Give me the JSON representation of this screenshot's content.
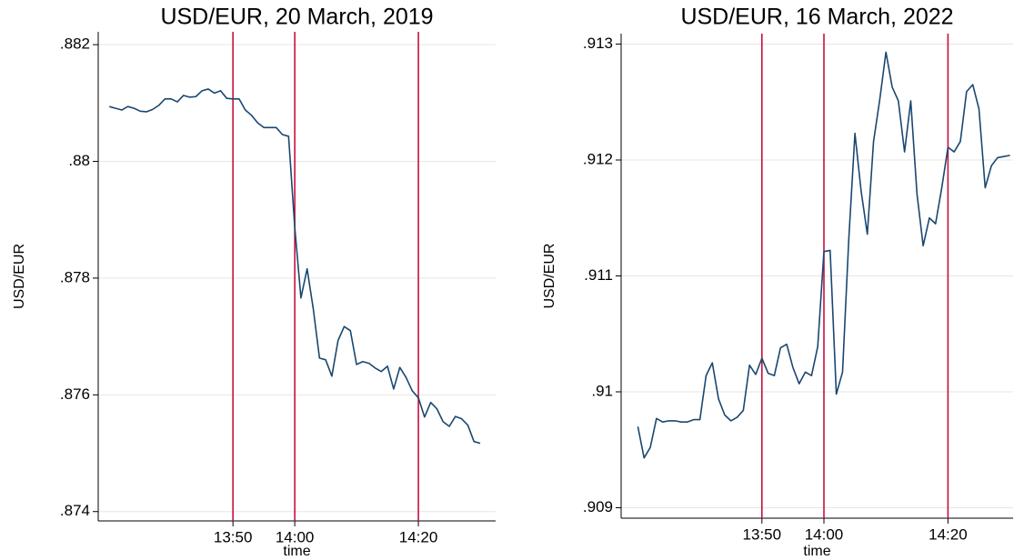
{
  "chart_data": [
    {
      "type": "line",
      "title": "USD/EUR, 20 March, 2019",
      "xlabel": "time",
      "ylabel": "USD/EUR",
      "color": "#1a476f",
      "x": [
        810,
        811,
        812,
        813,
        814,
        815,
        816,
        817,
        818,
        819,
        820,
        821,
        822,
        823,
        824,
        825,
        826,
        827,
        828,
        829,
        830,
        831,
        832,
        833,
        834,
        835,
        836,
        837,
        838,
        839,
        840,
        841,
        842,
        843,
        844,
        845,
        846,
        847,
        848,
        849,
        850,
        851,
        852,
        853,
        854,
        855,
        856,
        857,
        858,
        859,
        860,
        861,
        862,
        863,
        864,
        865,
        866,
        867,
        868,
        869,
        870
      ],
      "values": [
        0.88094,
        0.88091,
        0.88088,
        0.88094,
        0.88091,
        0.88086,
        0.88085,
        0.88089,
        0.88096,
        0.88107,
        0.88107,
        0.88102,
        0.88113,
        0.8811,
        0.88111,
        0.88121,
        0.88124,
        0.88117,
        0.88121,
        0.88108,
        0.88107,
        0.88107,
        0.88088,
        0.88079,
        0.88066,
        0.88058,
        0.88058,
        0.88058,
        0.88046,
        0.88043,
        0.87887,
        0.87766,
        0.87816,
        0.87747,
        0.87663,
        0.8766,
        0.87632,
        0.87693,
        0.87717,
        0.8771,
        0.87652,
        0.87657,
        0.87654,
        0.87646,
        0.8764,
        0.87649,
        0.8761,
        0.87647,
        0.8763,
        0.87607,
        0.87595,
        0.87562,
        0.87587,
        0.87576,
        0.87554,
        0.87546,
        0.87563,
        0.87559,
        0.87548,
        0.8752,
        0.87517
      ],
      "xlim": [
        808.2,
        872.5
      ],
      "xticks": [
        {
          "value": 830,
          "label": "13:50"
        },
        {
          "value": 840,
          "label": "14:00"
        },
        {
          "value": 860,
          "label": "14:20"
        }
      ],
      "ylim": [
        0.87384,
        0.88222
      ],
      "yticks": [
        {
          "value": 0.874,
          "label": ".874"
        },
        {
          "value": 0.876,
          "label": ".876"
        },
        {
          "value": 0.878,
          "label": ".878"
        },
        {
          "value": 0.88,
          "label": ".88"
        },
        {
          "value": 0.882,
          "label": ".882"
        }
      ],
      "grid": true,
      "vlines": [
        830,
        840,
        860
      ],
      "vline_color": "#c8103e"
    },
    {
      "type": "line",
      "title": "USD/EUR, 16 March, 2022",
      "xlabel": "time",
      "ylabel": "USD/EUR",
      "color": "#1a476f",
      "x": [
        810,
        811,
        812,
        813,
        814,
        815,
        816,
        817,
        818,
        819,
        820,
        821,
        822,
        823,
        824,
        825,
        826,
        827,
        828,
        829,
        830,
        831,
        832,
        833,
        834,
        835,
        836,
        837,
        838,
        839,
        840,
        841,
        842,
        843,
        844,
        845,
        846,
        847,
        848,
        849,
        850,
        851,
        852,
        853,
        854,
        855,
        856,
        857,
        858,
        859,
        860,
        861,
        862,
        863,
        864,
        865,
        866,
        867,
        868,
        869,
        870
      ],
      "values": [
        0.9097,
        0.90943,
        0.90952,
        0.90977,
        0.90974,
        0.90975,
        0.90975,
        0.90974,
        0.90974,
        0.90976,
        0.90976,
        0.91014,
        0.91025,
        0.90994,
        0.9098,
        0.90975,
        0.90978,
        0.90984,
        0.91023,
        0.91015,
        0.91029,
        0.91016,
        0.91014,
        0.91038,
        0.91041,
        0.91021,
        0.91007,
        0.91017,
        0.91014,
        0.91039,
        0.91121,
        0.91122,
        0.90998,
        0.91017,
        0.91131,
        0.91223,
        0.91173,
        0.91136,
        0.91216,
        0.91252,
        0.91293,
        0.91263,
        0.91251,
        0.91207,
        0.91251,
        0.91171,
        0.91126,
        0.9115,
        0.91145,
        0.91176,
        0.91211,
        0.91207,
        0.91216,
        0.91259,
        0.91265,
        0.91244,
        0.91176,
        0.91195,
        0.91202,
        0.91203,
        0.91204
      ],
      "xlim": [
        807.3,
        870.5
      ],
      "xticks": [
        {
          "value": 830,
          "label": "13:50"
        },
        {
          "value": 840,
          "label": "14:00"
        },
        {
          "value": 860,
          "label": "14:20"
        }
      ],
      "ylim": [
        0.90891,
        0.91309
      ],
      "yticks": [
        {
          "value": 0.909,
          "label": ".909"
        },
        {
          "value": 0.91,
          "label": ".91"
        },
        {
          "value": 0.911,
          "label": ".911"
        },
        {
          "value": 0.912,
          "label": ".912"
        },
        {
          "value": 0.913,
          "label": ".913"
        }
      ],
      "grid": true,
      "vlines": [
        830,
        840,
        860
      ],
      "vline_color": "#c8103e"
    }
  ]
}
